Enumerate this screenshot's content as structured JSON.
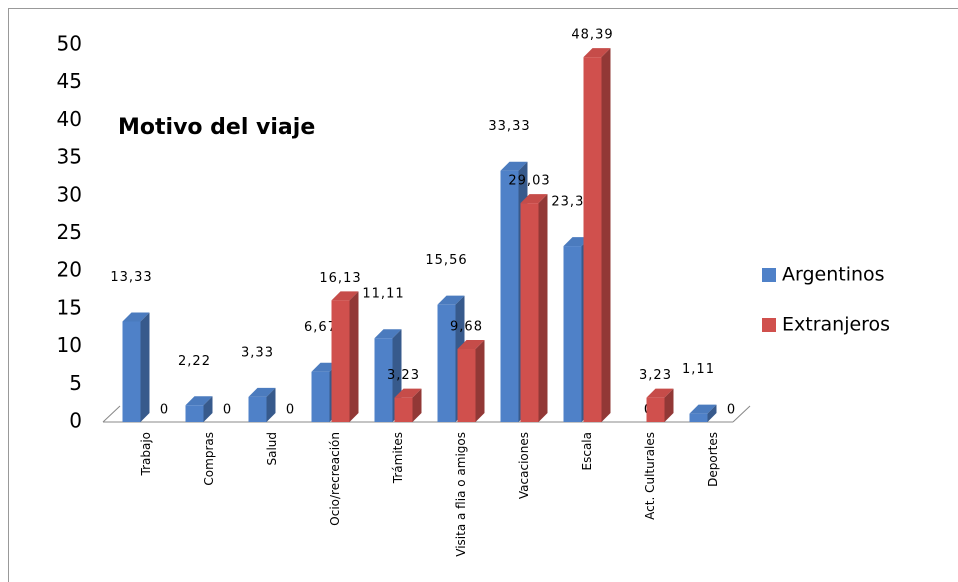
{
  "chart_data": {
    "type": "bar3d",
    "title": "Motivo del viaje",
    "categories": [
      "Trabajo",
      "Compras",
      "Salud",
      "Ocio/recreación",
      "Trámites",
      "Visita a flia o amigos",
      "Vacaciones",
      "Escala",
      "Act. Culturales",
      "Deportes"
    ],
    "series": [
      {
        "name": "Argentinos",
        "color": "#4f81c8",
        "values": [
          13.33,
          2.22,
          3.33,
          6.67,
          11.11,
          15.56,
          33.33,
          23.33,
          0,
          1.11
        ],
        "value_labels": [
          "13,33",
          "2,22",
          "3,33",
          "6,67",
          "11,11",
          "15,56",
          "33,33",
          "23,33",
          "0",
          "1,11"
        ]
      },
      {
        "name": "Extranjeros",
        "color": "#d0504d",
        "values": [
          0,
          0,
          0,
          16.13,
          3.23,
          9.68,
          29.03,
          48.39,
          3.23,
          0
        ],
        "value_labels": [
          "0",
          "0",
          "0",
          "16,13",
          "3,23",
          "9,68",
          "29,03",
          "48,39",
          "3,23",
          "0"
        ]
      }
    ],
    "ylim": [
      0,
      50
    ],
    "yticks": [
      0,
      5,
      10,
      15,
      20,
      25,
      30,
      35,
      40,
      45,
      50
    ],
    "legend": "right"
  }
}
